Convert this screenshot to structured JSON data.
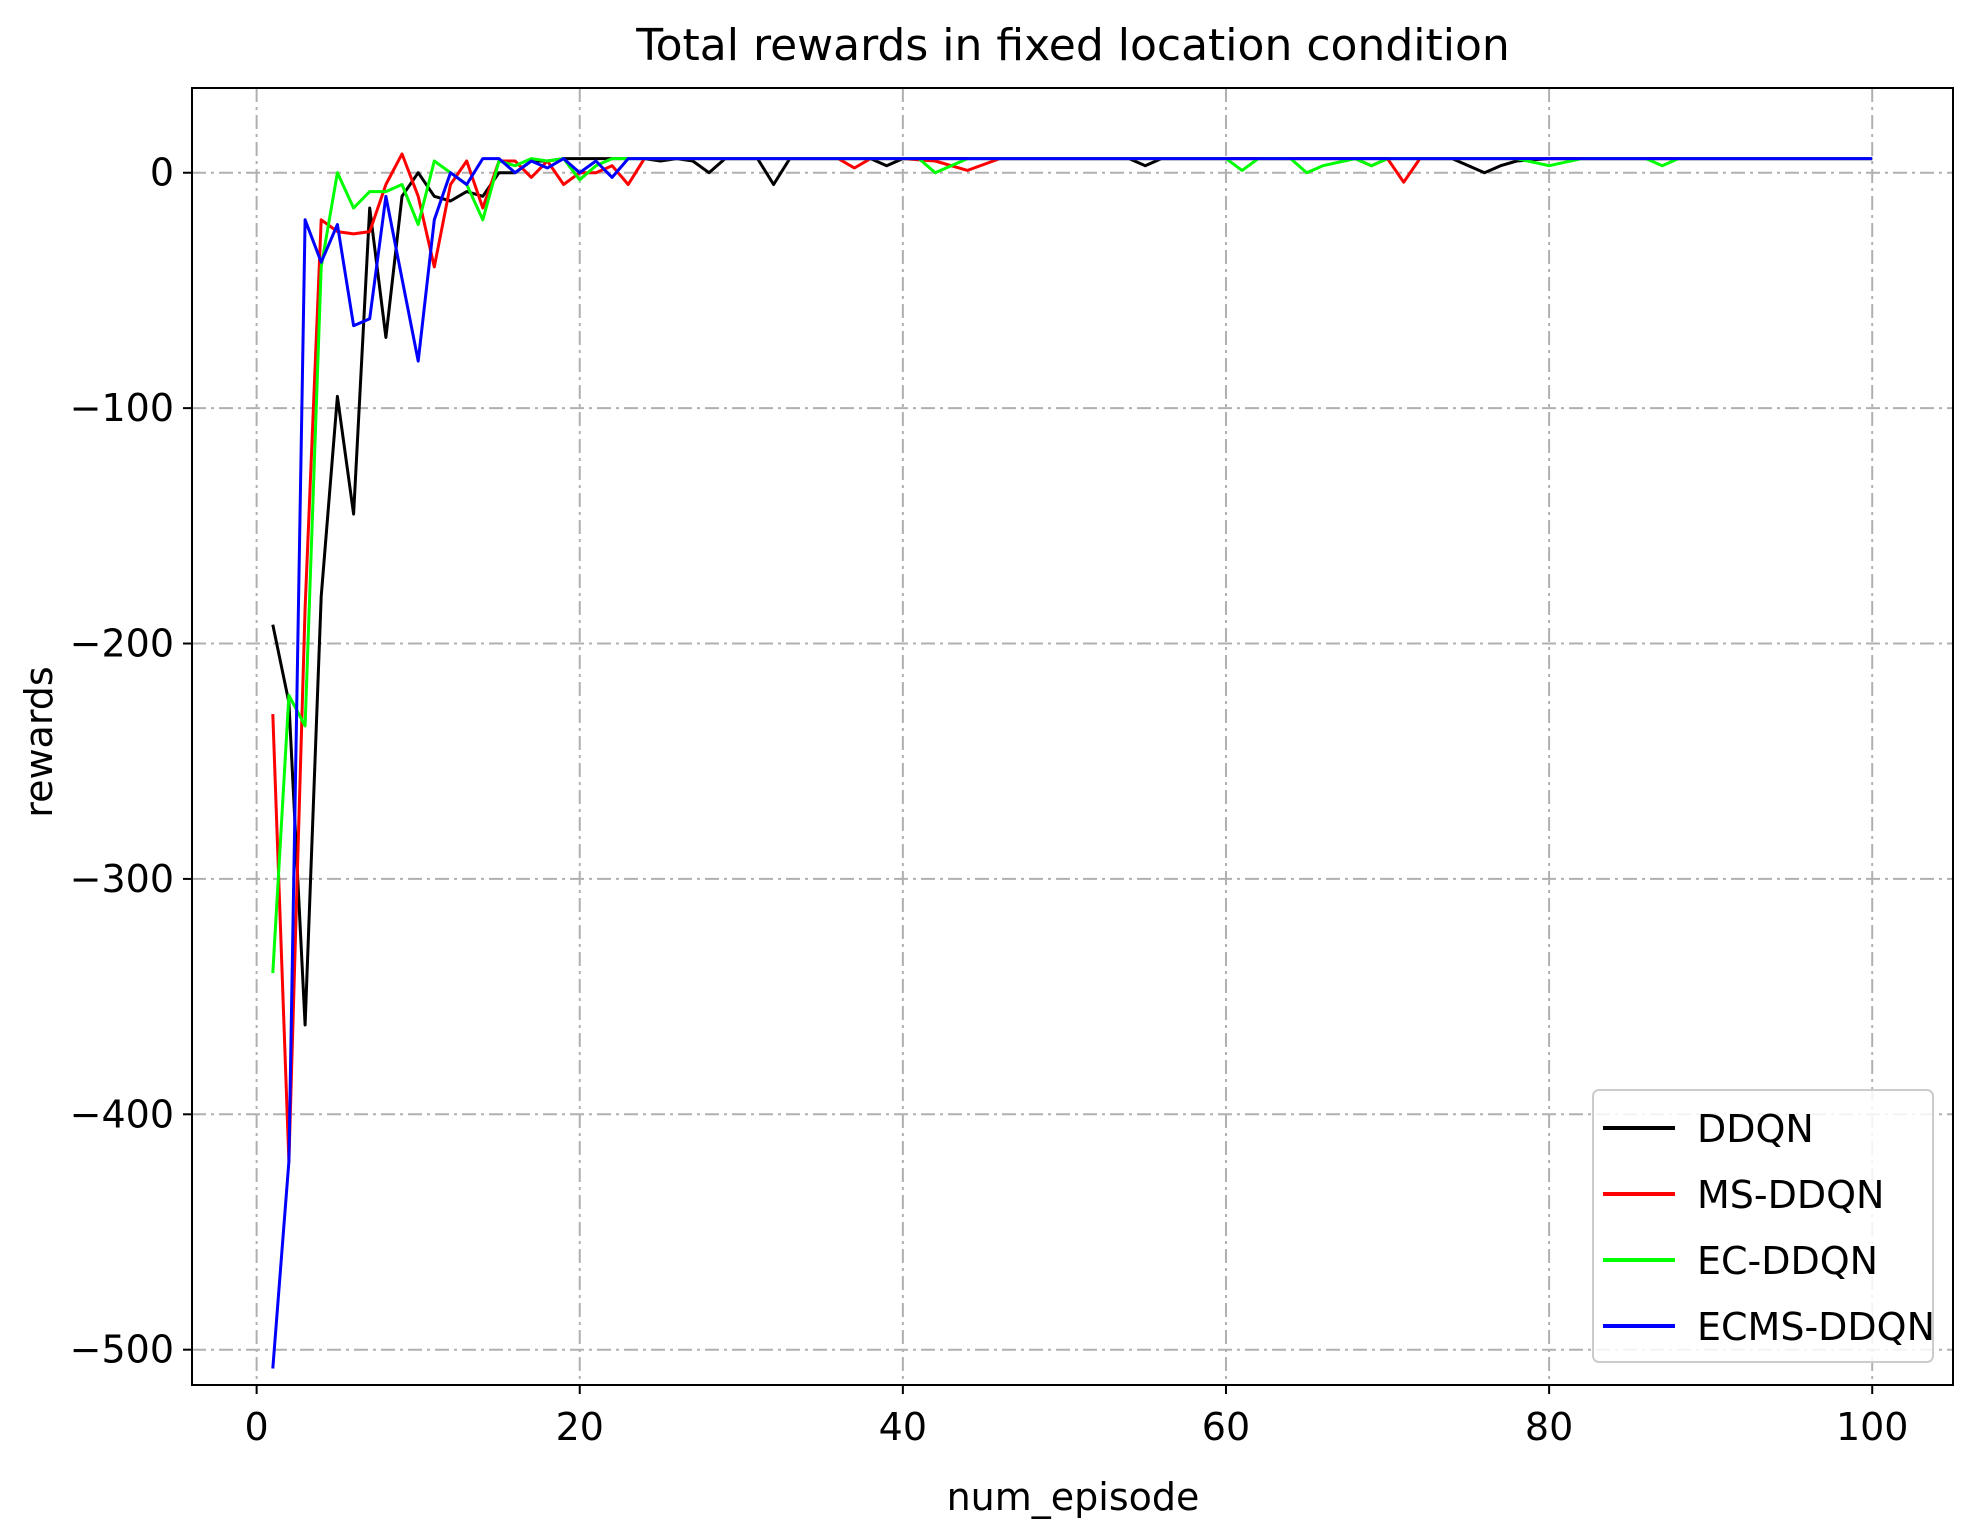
{
  "chart_data": {
    "type": "line",
    "title": "Total rewards in fixed location condition",
    "xlabel": "num_episode",
    "ylabel": "rewards",
    "xlim": [
      -4,
      105
    ],
    "ylim": [
      -515,
      36
    ],
    "xticks": [
      0,
      20,
      40,
      60,
      80,
      100
    ],
    "yticks": [
      0,
      -100,
      -200,
      -300,
      -400,
      -500
    ],
    "xtick_labels": [
      "0",
      "20",
      "40",
      "60",
      "80",
      "100"
    ],
    "ytick_labels": [
      "0",
      "−100",
      "−200",
      "−300",
      "−400",
      "−500"
    ],
    "grid": true,
    "legend_position": "lower-right",
    "series": [
      {
        "name": "DDQN",
        "color": "#000000",
        "x": [
          1,
          2,
          3,
          4,
          5,
          6,
          7,
          8,
          9,
          10,
          11,
          12,
          13,
          14,
          15,
          16,
          17,
          18,
          19,
          20,
          21,
          22,
          23,
          24,
          25,
          26,
          27,
          28,
          29,
          30,
          31,
          32,
          33,
          34,
          35,
          36,
          37,
          38,
          39,
          40,
          42,
          44,
          46,
          48,
          50,
          52,
          54,
          55,
          56,
          58,
          60,
          62,
          64,
          66,
          68,
          70,
          72,
          74,
          76,
          77,
          78,
          80,
          82,
          84,
          86,
          88,
          90,
          92,
          94,
          96,
          98,
          100
        ],
        "y": [
          -192,
          -225,
          -362,
          -180,
          -95,
          -145,
          -15,
          -70,
          -10,
          0,
          -10,
          -12,
          -8,
          -10,
          0,
          0,
          5,
          5,
          6,
          6,
          6,
          6,
          6,
          6,
          5,
          6,
          5,
          0,
          6,
          6,
          6,
          -5,
          6,
          6,
          6,
          6,
          6,
          6,
          3,
          6,
          6,
          6,
          6,
          6,
          6,
          6,
          6,
          3,
          6,
          6,
          6,
          6,
          6,
          6,
          6,
          6,
          6,
          6,
          0,
          3,
          5,
          6,
          6,
          6,
          6,
          6,
          6,
          6,
          6,
          6,
          6,
          6
        ]
      },
      {
        "name": "MS-DDQN",
        "color": "#ff0000",
        "x": [
          1,
          2,
          3,
          4,
          5,
          6,
          7,
          8,
          9,
          10,
          11,
          12,
          13,
          14,
          15,
          16,
          17,
          18,
          19,
          20,
          21,
          22,
          23,
          24,
          25,
          26,
          28,
          30,
          32,
          34,
          36,
          37,
          38,
          40,
          42,
          44,
          46,
          48,
          50,
          52,
          54,
          56,
          58,
          60,
          62,
          64,
          66,
          68,
          69,
          70,
          71,
          72,
          74,
          76,
          78,
          80,
          82,
          84,
          86,
          88,
          90,
          92,
          94,
          96,
          98,
          100
        ],
        "y": [
          -230,
          -420,
          -185,
          -20,
          -25,
          -26,
          -25,
          -5,
          8,
          -10,
          -40,
          -5,
          5,
          -15,
          5,
          5,
          -2,
          5,
          -5,
          0,
          0,
          3,
          -5,
          6,
          6,
          6,
          6,
          6,
          6,
          6,
          6,
          2,
          6,
          6,
          5,
          1,
          6,
          6,
          6,
          6,
          6,
          6,
          6,
          6,
          6,
          6,
          6,
          6,
          3,
          6,
          -4,
          6,
          6,
          6,
          6,
          6,
          6,
          6,
          6,
          6,
          6,
          6,
          6,
          6,
          6,
          6
        ]
      },
      {
        "name": "EC-DDQN",
        "color": "#00ff00",
        "x": [
          1,
          2,
          3,
          4,
          5,
          6,
          7,
          8,
          9,
          10,
          11,
          12,
          13,
          14,
          15,
          16,
          17,
          18,
          19,
          20,
          21,
          22,
          23,
          24,
          26,
          28,
          30,
          32,
          34,
          36,
          38,
          40,
          41,
          42,
          44,
          46,
          48,
          50,
          52,
          54,
          56,
          58,
          60,
          61,
          62,
          64,
          65,
          66,
          68,
          69,
          70,
          72,
          74,
          76,
          78,
          80,
          82,
          84,
          86,
          87,
          88,
          90,
          92,
          94,
          96,
          98,
          100
        ],
        "y": [
          -340,
          -222,
          -235,
          -40,
          0,
          -15,
          -8,
          -8,
          -5,
          -22,
          5,
          0,
          -5,
          -20,
          5,
          3,
          6,
          5,
          6,
          -3,
          3,
          6,
          6,
          6,
          6,
          6,
          6,
          6,
          6,
          6,
          6,
          6,
          6,
          0,
          6,
          6,
          6,
          6,
          6,
          6,
          6,
          6,
          6,
          1,
          6,
          6,
          0,
          3,
          6,
          3,
          6,
          6,
          6,
          6,
          6,
          3,
          6,
          6,
          6,
          3,
          6,
          6,
          6,
          6,
          6,
          6,
          6
        ]
      },
      {
        "name": "ECMS-DDQN",
        "color": "#0000ff",
        "x": [
          1,
          2,
          3,
          4,
          5,
          6,
          7,
          8,
          9,
          10,
          11,
          12,
          13,
          14,
          15,
          16,
          17,
          18,
          19,
          20,
          21,
          22,
          23,
          24,
          26,
          28,
          30,
          32,
          34,
          36,
          38,
          40,
          42,
          44,
          46,
          48,
          50,
          52,
          54,
          56,
          58,
          60,
          62,
          64,
          66,
          68,
          70,
          72,
          74,
          76,
          78,
          80,
          82,
          84,
          86,
          88,
          90,
          92,
          94,
          96,
          98,
          100
        ],
        "y": [
          -508,
          -420,
          -20,
          -38,
          -22,
          -65,
          -62,
          -10,
          -45,
          -80,
          -20,
          0,
          -5,
          6,
          6,
          0,
          5,
          2,
          6,
          0,
          5,
          -2,
          6,
          6,
          6,
          6,
          6,
          6,
          6,
          6,
          6,
          6,
          6,
          6,
          6,
          6,
          6,
          6,
          6,
          6,
          6,
          6,
          6,
          6,
          6,
          6,
          6,
          6,
          6,
          6,
          6,
          6,
          6,
          6,
          6,
          6,
          6,
          6,
          6,
          6,
          6,
          6
        ]
      }
    ]
  }
}
